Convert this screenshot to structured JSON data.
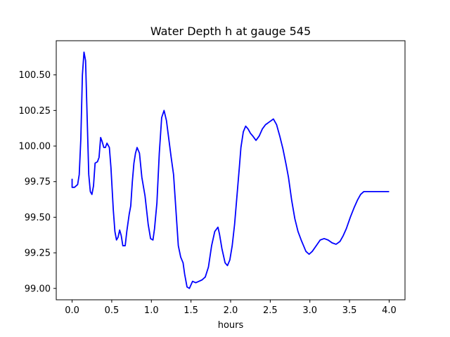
{
  "chart_data": {
    "type": "line",
    "title": "Water Depth h at gauge 545",
    "xlabel": "hours",
    "ylabel": "",
    "xlim": [
      -0.2,
      4.2
    ],
    "ylim": [
      98.92,
      100.74
    ],
    "xticks": [
      0.0,
      0.5,
      1.0,
      1.5,
      2.0,
      2.5,
      3.0,
      3.5,
      4.0
    ],
    "xtick_labels": [
      "0.0",
      "0.5",
      "1.0",
      "1.5",
      "2.0",
      "2.5",
      "3.0",
      "3.5",
      "4.0"
    ],
    "yticks": [
      99.0,
      99.25,
      99.5,
      99.75,
      100.0,
      100.25,
      100.5
    ],
    "ytick_labels": [
      "99.00",
      "99.25",
      "99.50",
      "99.75",
      "100.00",
      "100.25",
      "100.50"
    ],
    "grid": false,
    "series": [
      {
        "color": "#0000ff",
        "x": [
          0.0,
          0.0,
          0.03,
          0.07,
          0.09,
          0.11,
          0.13,
          0.15,
          0.17,
          0.19,
          0.21,
          0.23,
          0.25,
          0.27,
          0.29,
          0.32,
          0.34,
          0.36,
          0.38,
          0.4,
          0.42,
          0.44,
          0.47,
          0.49,
          0.52,
          0.54,
          0.56,
          0.58,
          0.6,
          0.62,
          0.64,
          0.67,
          0.69,
          0.72,
          0.74,
          0.76,
          0.78,
          0.8,
          0.82,
          0.85,
          0.88,
          0.92,
          0.96,
          0.99,
          1.02,
          1.04,
          1.07,
          1.1,
          1.13,
          1.16,
          1.19,
          1.22,
          1.25,
          1.28,
          1.31,
          1.34,
          1.37,
          1.4,
          1.42,
          1.45,
          1.48,
          1.52,
          1.56,
          1.6,
          1.64,
          1.68,
          1.72,
          1.76,
          1.8,
          1.84,
          1.86,
          1.89,
          1.93,
          1.96,
          1.99,
          2.02,
          2.05,
          2.08,
          2.11,
          2.13,
          2.16,
          2.19,
          2.22,
          2.25,
          2.28,
          2.32,
          2.36,
          2.4,
          2.44,
          2.49,
          2.54,
          2.58,
          2.62,
          2.66,
          2.7,
          2.73,
          2.77,
          2.81,
          2.85,
          2.89,
          2.92,
          2.95,
          2.99,
          3.03,
          3.08,
          3.13,
          3.18,
          3.23,
          3.28,
          3.33,
          3.38,
          3.42,
          3.46,
          3.51,
          3.56,
          3.6,
          3.64,
          3.68,
          3.72,
          3.76,
          3.8,
          3.84,
          3.88,
          3.92,
          3.96,
          4.0
        ],
        "y": [
          99.77,
          99.71,
          99.71,
          99.73,
          99.8,
          100.05,
          100.5,
          100.66,
          100.6,
          100.2,
          99.8,
          99.68,
          99.66,
          99.72,
          99.88,
          99.89,
          99.92,
          100.06,
          100.03,
          99.99,
          99.99,
          100.02,
          99.99,
          99.85,
          99.55,
          99.4,
          99.34,
          99.36,
          99.41,
          99.37,
          99.3,
          99.3,
          99.4,
          99.52,
          99.58,
          99.75,
          99.88,
          99.95,
          99.99,
          99.95,
          99.78,
          99.65,
          99.45,
          99.35,
          99.34,
          99.42,
          99.6,
          99.95,
          100.2,
          100.25,
          100.18,
          100.05,
          99.92,
          99.8,
          99.55,
          99.3,
          99.22,
          99.18,
          99.1,
          99.01,
          99.0,
          99.05,
          99.04,
          99.05,
          99.06,
          99.08,
          99.15,
          99.3,
          99.4,
          99.43,
          99.38,
          99.28,
          99.18,
          99.16,
          99.2,
          99.3,
          99.45,
          99.65,
          99.85,
          99.99,
          100.1,
          100.14,
          100.12,
          100.09,
          100.07,
          100.04,
          100.07,
          100.12,
          100.15,
          100.17,
          100.19,
          100.15,
          100.07,
          99.98,
          99.87,
          99.78,
          99.62,
          99.49,
          99.4,
          99.34,
          99.3,
          99.26,
          99.24,
          99.26,
          99.3,
          99.34,
          99.35,
          99.34,
          99.32,
          99.31,
          99.33,
          99.37,
          99.42,
          99.5,
          99.57,
          99.62,
          99.66,
          99.68,
          99.68,
          99.68,
          99.68,
          99.68,
          99.68,
          99.68,
          99.68,
          99.68
        ]
      }
    ]
  }
}
